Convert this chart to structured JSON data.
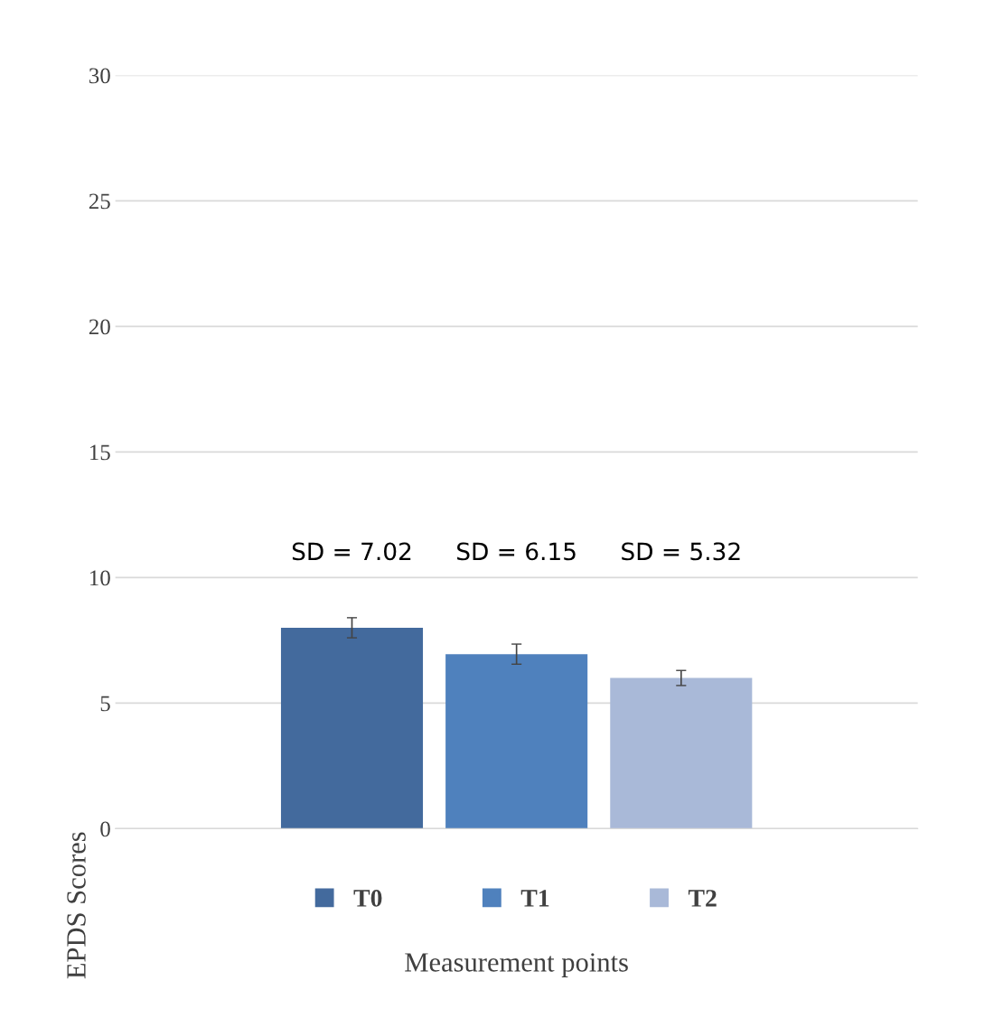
{
  "chart_data": {
    "type": "bar",
    "categories": [
      null
    ],
    "series": [
      {
        "name": "T0",
        "color": "#436a9d",
        "values": [
          8.0
        ],
        "errors": [
          0.4
        ]
      },
      {
        "name": "T1",
        "color": "#4f81bd",
        "values": [
          6.95
        ],
        "errors": [
          0.4
        ]
      },
      {
        "name": "T2",
        "color": "#a9b9d8",
        "values": [
          6.0
        ],
        "errors": [
          0.3
        ]
      }
    ],
    "annotations": [
      "SD = 7.02",
      "SD = 6.15",
      "SD = 5.32"
    ],
    "xlabel": "Measurement points",
    "ylabel": "EPDS Scores",
    "ylim": [
      0,
      30
    ],
    "yticks": [
      0,
      5,
      10,
      15,
      20,
      25,
      30
    ],
    "grid": "y",
    "legend": "bottom"
  }
}
